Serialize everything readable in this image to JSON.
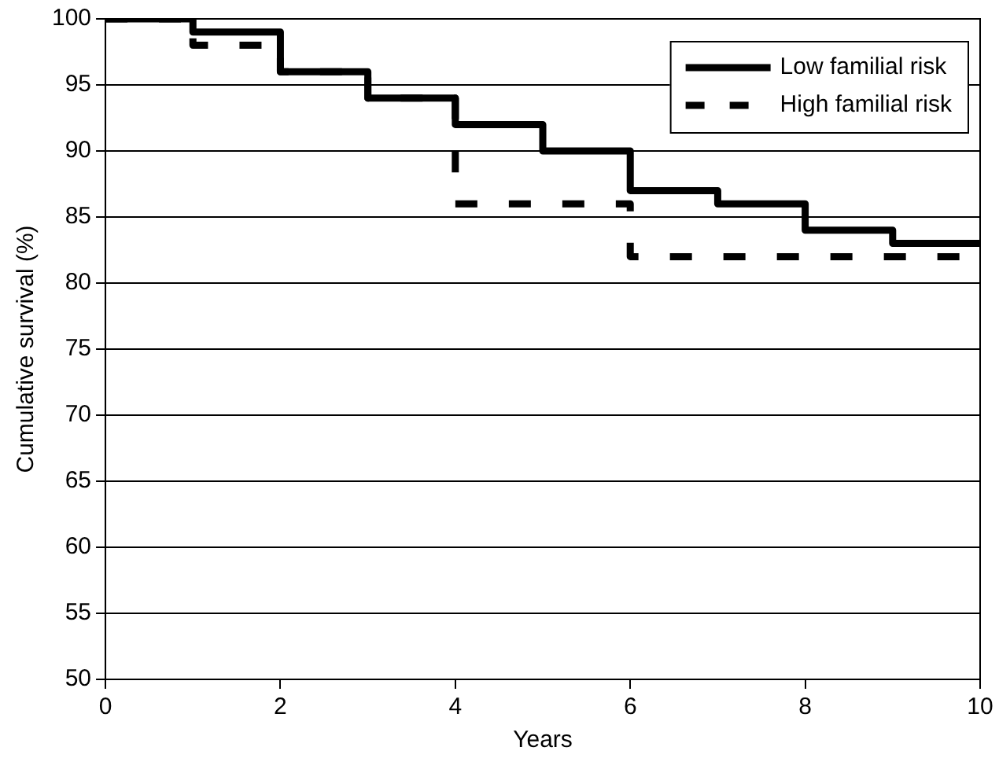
{
  "chart_data": {
    "type": "step",
    "xlabel": "Years",
    "ylabel": "Cumulative survival (%)",
    "x": [
      0,
      1,
      2,
      3,
      4,
      5,
      6,
      7,
      8,
      9,
      10
    ],
    "series": [
      {
        "name": "Low familial risk",
        "color": "#000000",
        "line_style": "solid",
        "values": [
          100,
          99,
          96,
          94,
          92,
          90,
          87,
          86,
          84,
          83,
          83
        ]
      },
      {
        "name": "High familial risk",
        "color": "#000000",
        "line_style": "dashed",
        "values": [
          100,
          98,
          96,
          94,
          86,
          86,
          82,
          82,
          82,
          82,
          82
        ]
      }
    ],
    "xlim": [
      0,
      10
    ],
    "xticks": [
      0,
      2,
      4,
      6,
      8,
      10
    ],
    "ylim": [
      50,
      100
    ],
    "yticks": [
      50,
      55,
      60,
      65,
      70,
      75,
      80,
      85,
      90,
      95,
      100
    ],
    "grid": "y",
    "legend": "top right",
    "marker": "none"
  }
}
